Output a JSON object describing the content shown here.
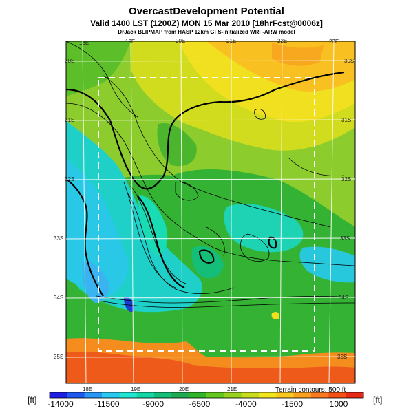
{
  "header": {
    "title": "OvercastDevelopment Potential",
    "valid_line": "Valid 1400 LST (1200Z) MON 15 Mar 2010 [18hrFcst@0006z]",
    "credit_line": "DrJack BLIPMAP from HASP 12km GFS-initialized WRF-ARW model"
  },
  "map": {
    "lon_labels_top": [
      "18E",
      "19E",
      "20E",
      "21E",
      "22E",
      "23E"
    ],
    "lon_labels_bottom": [
      "18E",
      "19E",
      "20E",
      "21E"
    ],
    "lat_labels_left": [
      "30S",
      "31S",
      "32S",
      "33S",
      "34S",
      "35S"
    ],
    "lat_labels_right": [
      "30S",
      "31S",
      "32S",
      "33S",
      "34S",
      "35S"
    ],
    "terrain_note": "Terrain contours: 500 ft"
  },
  "colorbar": {
    "unit_left": "[ft]",
    "unit_right": "[ft]",
    "tick_labels": [
      "-14000",
      "-11500",
      "-9000",
      "-6500",
      "-4000",
      "-1500",
      "1000"
    ],
    "colors": [
      "#1e1ee6",
      "#1e5af0",
      "#2896f5",
      "#28c8f0",
      "#1ee6d2",
      "#14d7a5",
      "#14be78",
      "#1eaa50",
      "#32b428",
      "#64c81e",
      "#96d21e",
      "#c8dc1e",
      "#f0e61e",
      "#fac81e",
      "#faa01e",
      "#fa781e",
      "#f55014",
      "#e62814"
    ]
  }
}
